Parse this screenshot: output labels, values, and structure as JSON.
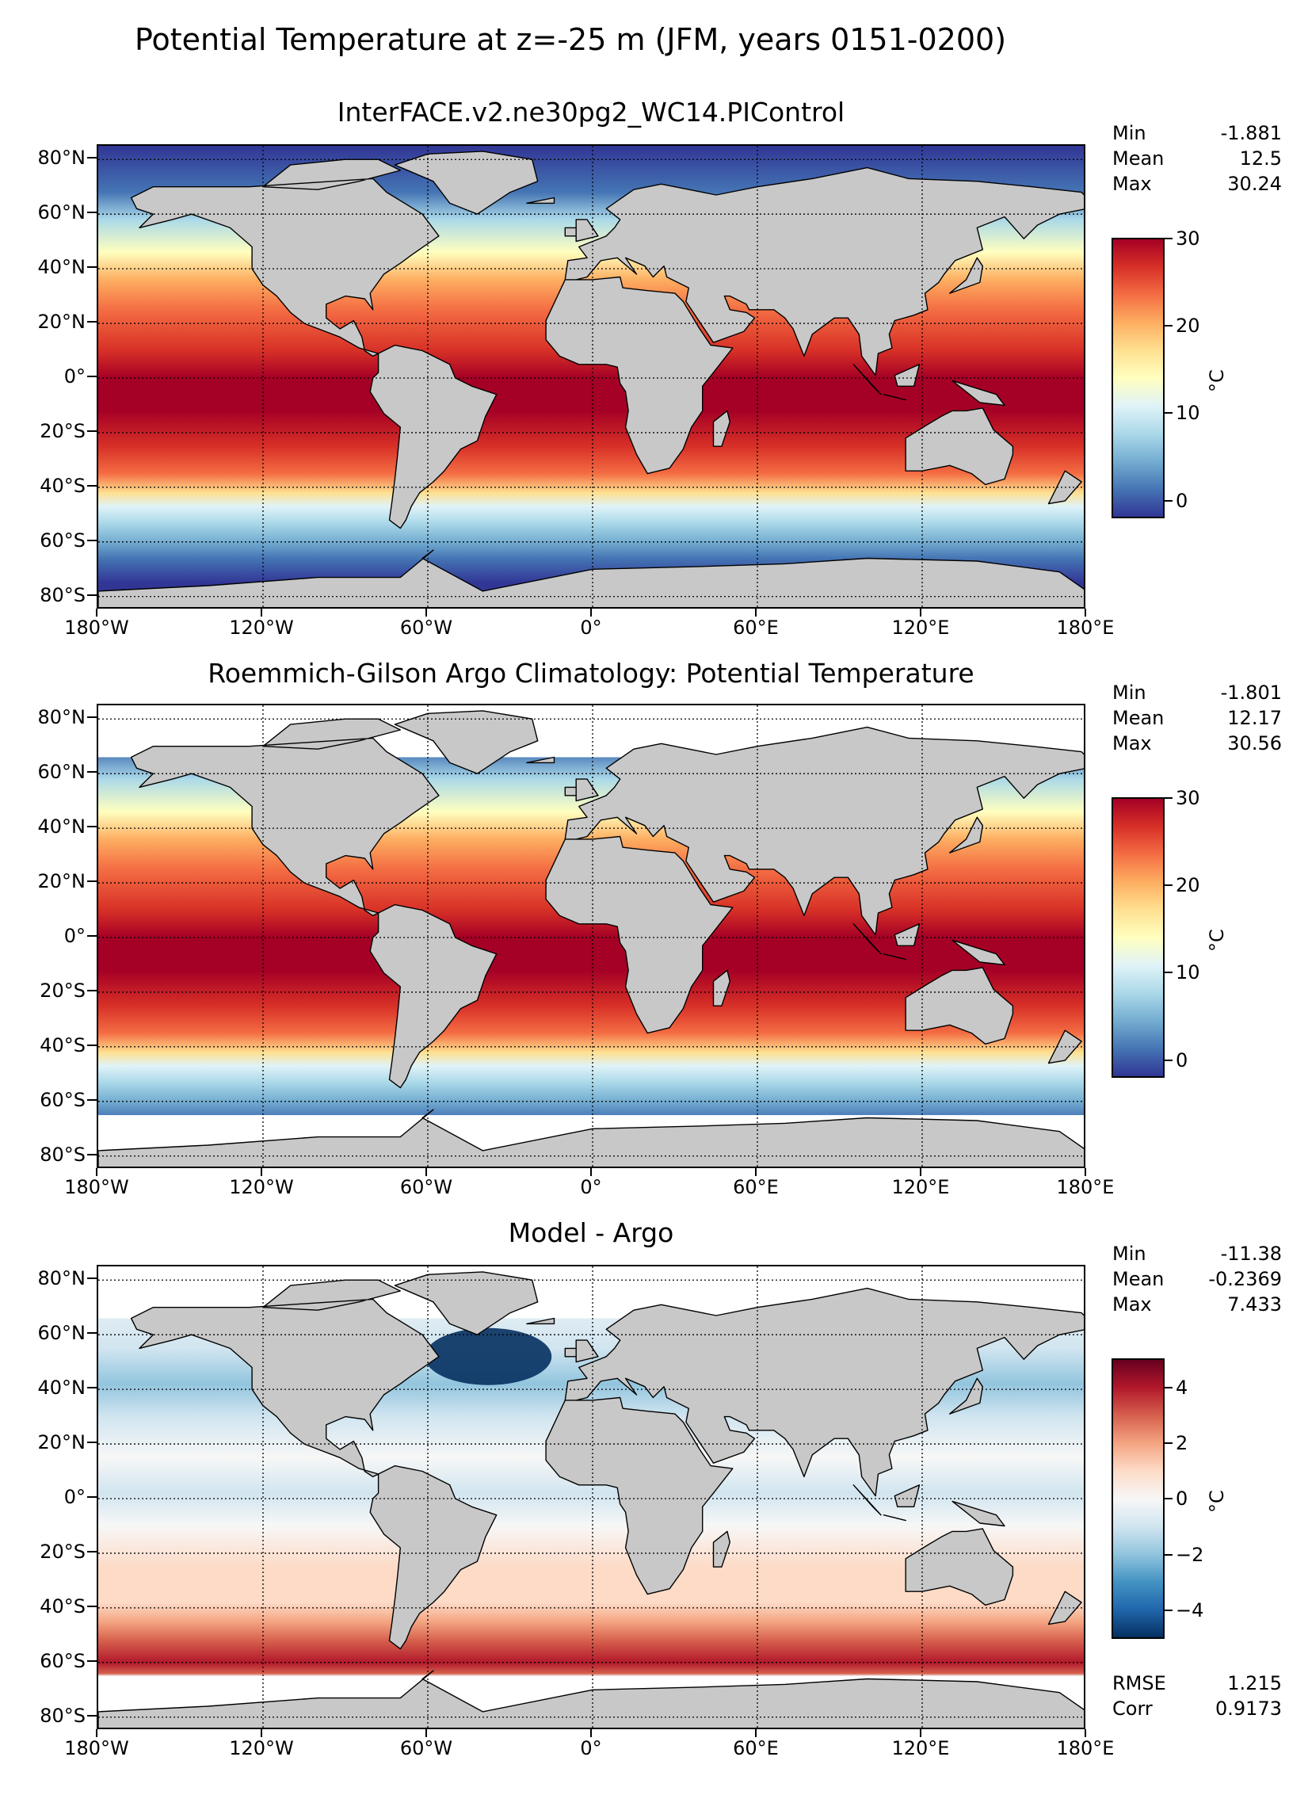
{
  "title": "Potential Temperature at z=-25 m (JFM, years 0151-0200)",
  "lat_labels": [
    "80°N",
    "60°N",
    "40°N",
    "20°N",
    "0°",
    "20°S",
    "40°S",
    "60°S",
    "80°S"
  ],
  "lon_labels": [
    "180°W",
    "120°W",
    "60°W",
    "0°",
    "60°E",
    "120°E",
    "180°E"
  ],
  "colors": {
    "land": "#c8c8c8",
    "missing": "#ffffff",
    "rdylbu": [
      "#313695",
      "#4575b4",
      "#74add1",
      "#abd9e9",
      "#e0f3f8",
      "#ffffbf",
      "#fee090",
      "#fdae61",
      "#f46d43",
      "#d73027",
      "#a50026"
    ],
    "rdbu": [
      "#053061",
      "#2166ac",
      "#4393c3",
      "#92c5de",
      "#d1e5f0",
      "#f7f7f7",
      "#fddbc7",
      "#f4a582",
      "#d6604d",
      "#b2182b",
      "#67001f"
    ]
  },
  "panels": [
    {
      "title": "InterFACE.v2.ne30pg2_WC14.PIControl",
      "stats": [
        {
          "label": "Min",
          "value": "-1.881"
        },
        {
          "label": "Mean",
          "value": "12.5"
        },
        {
          "label": "Max",
          "value": "30.24"
        }
      ],
      "colorbar": {
        "ticks": [
          "30",
          "20",
          "10",
          "0"
        ],
        "unit": "°C",
        "range": [
          -2,
          30
        ],
        "cmap": "rdylbu"
      },
      "extra_stats": []
    },
    {
      "title": "Roemmich-Gilson Argo Climatology: Potential Temperature",
      "stats": [
        {
          "label": "Min",
          "value": "-1.801"
        },
        {
          "label": "Mean",
          "value": "12.17"
        },
        {
          "label": "Max",
          "value": "30.56"
        }
      ],
      "colorbar": {
        "ticks": [
          "30",
          "20",
          "10",
          "0"
        ],
        "unit": "°C",
        "range": [
          -2,
          30
        ],
        "cmap": "rdylbu"
      },
      "extra_stats": []
    },
    {
      "title": "Model - Argo",
      "stats": [
        {
          "label": "Min",
          "value": "-11.38"
        },
        {
          "label": "Mean",
          "value": "-0.2369"
        },
        {
          "label": "Max",
          "value": "7.433"
        }
      ],
      "colorbar": {
        "ticks": [
          "4",
          "2",
          "0",
          "−2",
          "−4"
        ],
        "unit": "°C",
        "range": [
          -5,
          5
        ],
        "cmap": "rdbu"
      },
      "extra_stats": [
        {
          "label": "RMSE",
          "value": "1.215"
        },
        {
          "label": "Corr",
          "value": "0.9173"
        }
      ]
    }
  ]
}
